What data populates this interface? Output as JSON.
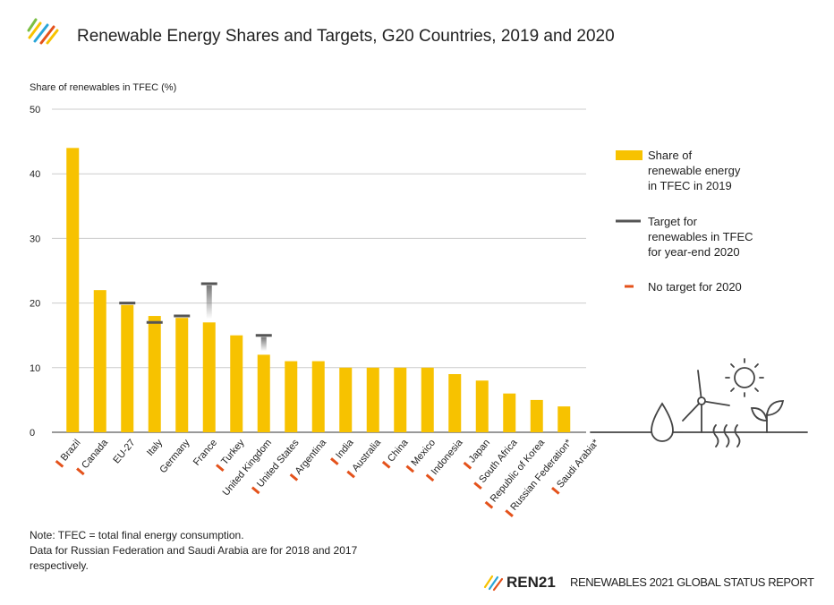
{
  "chart_data": {
    "type": "bar",
    "title": "Renewable Energy Shares and Targets, G20 Countries, 2019 and 2020",
    "y_label": "Share of renewables in TFEC (%)",
    "categories": [
      "Brazil",
      "Canada",
      "EU-27",
      "Italy",
      "Germany",
      "France",
      "Turkey",
      "United Kingdom",
      "United States",
      "Argentina",
      "India",
      "Australia",
      "China",
      "Mexico",
      "Indonesia",
      "Japan",
      "South Africa",
      "Republic of Korea",
      "Russian Federation*",
      "Saudi Arabia*"
    ],
    "series": [
      {
        "name": [
          "Share of",
          "renewable energy",
          "in TFEC in 2019"
        ],
        "color": "#f7c200",
        "values": [
          44,
          22,
          19.7,
          18,
          17.7,
          17,
          15,
          12,
          11,
          11,
          10,
          10,
          10,
          10,
          9,
          8,
          6,
          5,
          4,
          0
        ]
      },
      {
        "name": [
          "Target for",
          "renewables in TFEC",
          "for year-end 2020"
        ],
        "color": "#555555",
        "values": [
          null,
          null,
          20,
          17,
          18,
          23,
          null,
          15,
          null,
          null,
          null,
          null,
          null,
          null,
          null,
          null,
          null,
          null,
          null,
          null
        ]
      }
    ],
    "no_target": {
      "name": "No target for 2020",
      "color": "#e4521b"
    },
    "ylim": [
      0,
      50
    ],
    "yticks": [
      0,
      10,
      20,
      30,
      40,
      50
    ],
    "grid": true,
    "notes": [
      "Note: TFEC = total final energy consumption.",
      "Data for Russian Federation and Saudi Arabia are for 2018 and 2017",
      "respectively."
    ],
    "footer": {
      "brand": "REN21",
      "report": "RENEWABLES 2021 GLOBAL STATUS REPORT"
    }
  }
}
